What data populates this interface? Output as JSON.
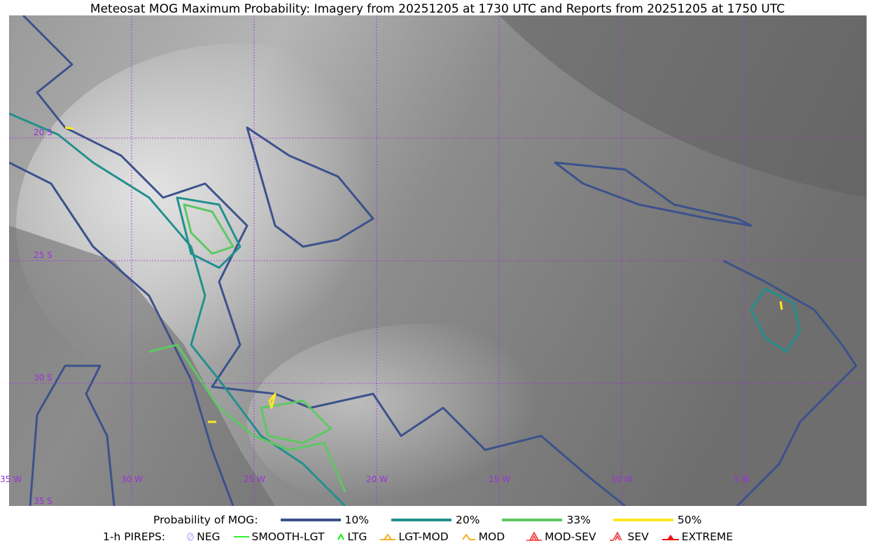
{
  "title": "Meteosat MOG Maximum Probability: Imagery from 20251205 at 1730 UTC and Reports from 20251205 at 1750 UTC",
  "map": {
    "longitude_labels": [
      "35 W",
      "30 W",
      "25 W",
      "20 W",
      "15 W",
      "10 W",
      "5 W"
    ],
    "latitude_labels": [
      "20 S",
      "25 S",
      "30 S",
      "35 S"
    ],
    "grid_color": "#9b30d9"
  },
  "legend": {
    "probability_label": "Probability of MOG:",
    "levels": [
      {
        "label": "10%",
        "color": "#3b528b"
      },
      {
        "label": "20%",
        "color": "#21908d"
      },
      {
        "label": "33%",
        "color": "#5dc863"
      },
      {
        "label": "50%",
        "color": "#fde725"
      }
    ],
    "pireps_label": "1-h PIREPS:",
    "pireps": [
      {
        "label": "NEG",
        "icon": "neg-circle-icon",
        "color": "#c8c8ff"
      },
      {
        "label": "SMOOTH-LGT",
        "icon": "line-icon",
        "color": "#33ee33"
      },
      {
        "label": "LTG",
        "icon": "caret-icon",
        "color": "#00ee00"
      },
      {
        "label": "LGT-MOD",
        "icon": "caret-bar-icon",
        "color": "#f5b025"
      },
      {
        "label": "MOD",
        "icon": "caret-icon",
        "color": "#f5b025"
      },
      {
        "label": "MOD-SEV",
        "icon": "double-caret-bar-icon",
        "color": "#ee3333"
      },
      {
        "label": "SEV",
        "icon": "double-caret-icon",
        "color": "#ee3333"
      },
      {
        "label": "EXTREME",
        "icon": "filled-triangle-icon",
        "color": "#ee1111"
      }
    ]
  }
}
